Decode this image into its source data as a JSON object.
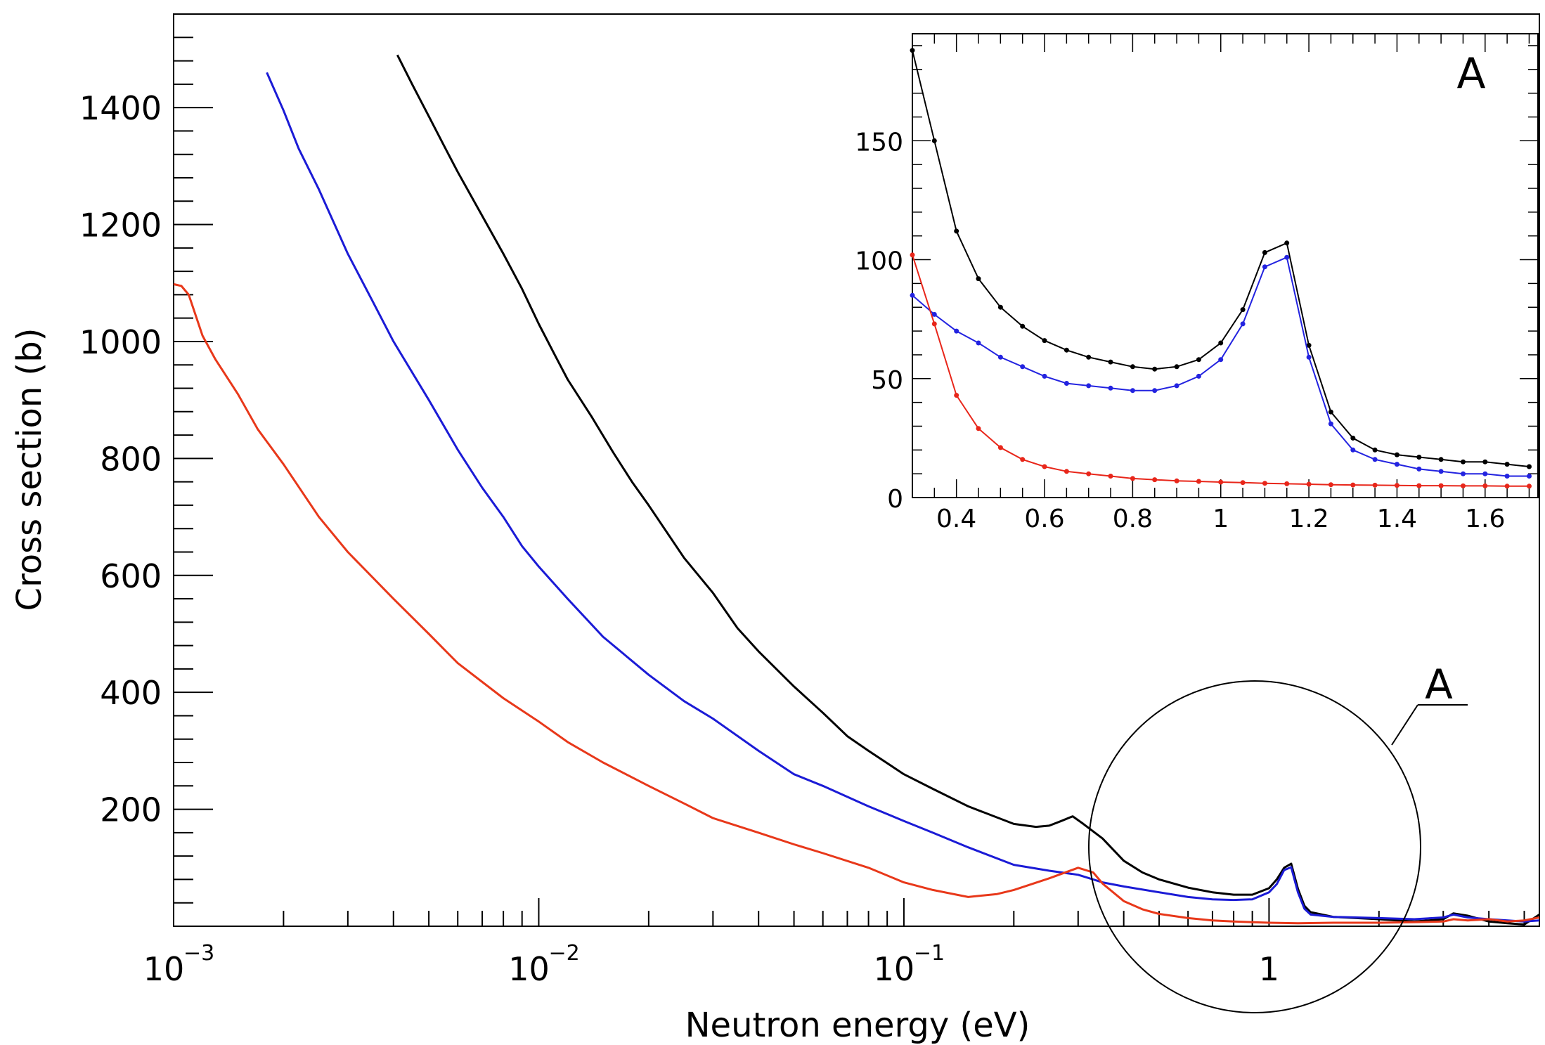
{
  "chart_data": [
    {
      "type": "line",
      "title": "",
      "xlabel": "Neutron energy (eV)",
      "ylabel": "Cross section (b)",
      "xscale": "log",
      "xlim": [
        0.001,
        5.5
      ],
      "ylim": [
        0,
        1560
      ],
      "x_tick_labels": [
        {
          "value": 0.001,
          "base": "10",
          "exp": "−3"
        },
        {
          "value": 0.01,
          "base": "10",
          "exp": "−2"
        },
        {
          "value": 0.1,
          "base": "10",
          "exp": "−1"
        },
        {
          "value": 1,
          "base": "1",
          "exp": ""
        }
      ],
      "y_ticks": [
        200,
        400,
        600,
        800,
        1000,
        1200,
        1400
      ],
      "annotation_label": "A",
      "series": [
        {
          "color": "#000000",
          "points": [
            [
              0.0041,
              1490
            ],
            [
              0.0045,
              1440
            ],
            [
              0.005,
              1385
            ],
            [
              0.0055,
              1335
            ],
            [
              0.006,
              1290
            ],
            [
              0.007,
              1215
            ],
            [
              0.008,
              1150
            ],
            [
              0.009,
              1090
            ],
            [
              0.01,
              1030
            ],
            [
              0.011,
              980
            ],
            [
              0.012,
              935
            ],
            [
              0.014,
              870
            ],
            [
              0.016,
              810
            ],
            [
              0.018,
              760
            ],
            [
              0.02,
              720
            ],
            [
              0.025,
              630
            ],
            [
              0.03,
              570
            ],
            [
              0.035,
              510
            ],
            [
              0.04,
              470
            ],
            [
              0.05,
              410
            ],
            [
              0.06,
              365
            ],
            [
              0.07,
              325
            ],
            [
              0.08,
              300
            ],
            [
              0.1,
              260
            ],
            [
              0.12,
              235
            ],
            [
              0.15,
              205
            ],
            [
              0.2,
              175
            ],
            [
              0.23,
              170
            ],
            [
              0.25,
              172
            ],
            [
              0.27,
              180
            ],
            [
              0.29,
              188
            ],
            [
              0.31,
              175
            ],
            [
              0.35,
              150
            ],
            [
              0.4,
              112
            ],
            [
              0.45,
              92
            ],
            [
              0.5,
              80
            ],
            [
              0.6,
              66
            ],
            [
              0.7,
              58
            ],
            [
              0.8,
              54
            ],
            [
              0.9,
              54
            ],
            [
              1.0,
              65
            ],
            [
              1.05,
              80
            ],
            [
              1.1,
              100
            ],
            [
              1.15,
              107
            ],
            [
              1.2,
              64
            ],
            [
              1.25,
              35
            ],
            [
              1.3,
              24
            ],
            [
              1.5,
              16
            ],
            [
              2.0,
              12
            ],
            [
              2.5,
              8
            ],
            [
              3.0,
              12
            ],
            [
              3.2,
              22
            ],
            [
              3.5,
              18
            ],
            [
              4.0,
              8
            ],
            [
              4.5,
              5
            ],
            [
              5.0,
              3
            ],
            [
              5.5,
              20
            ]
          ]
        },
        {
          "color": "#1b1bd6",
          "points": [
            [
              0.0018,
              1460
            ],
            [
              0.002,
              1395
            ],
            [
              0.0022,
              1330
            ],
            [
              0.0025,
              1260
            ],
            [
              0.003,
              1150
            ],
            [
              0.0035,
              1070
            ],
            [
              0.004,
              1000
            ],
            [
              0.005,
              900
            ],
            [
              0.006,
              815
            ],
            [
              0.007,
              750
            ],
            [
              0.008,
              700
            ],
            [
              0.009,
              650
            ],
            [
              0.01,
              615
            ],
            [
              0.012,
              560
            ],
            [
              0.015,
              495
            ],
            [
              0.02,
              430
            ],
            [
              0.025,
              385
            ],
            [
              0.03,
              355
            ],
            [
              0.04,
              300
            ],
            [
              0.05,
              260
            ],
            [
              0.06,
              240
            ],
            [
              0.08,
              205
            ],
            [
              0.1,
              180
            ],
            [
              0.12,
              160
            ],
            [
              0.15,
              135
            ],
            [
              0.2,
              105
            ],
            [
              0.25,
              95
            ],
            [
              0.3,
              88
            ],
            [
              0.35,
              75
            ],
            [
              0.4,
              68
            ],
            [
              0.5,
              58
            ],
            [
              0.6,
              50
            ],
            [
              0.7,
              46
            ],
            [
              0.8,
              45
            ],
            [
              0.9,
              46
            ],
            [
              1.0,
              58
            ],
            [
              1.05,
              72
            ],
            [
              1.1,
              96
            ],
            [
              1.15,
              101
            ],
            [
              1.2,
              58
            ],
            [
              1.25,
              30
            ],
            [
              1.3,
              20
            ],
            [
              1.5,
              16
            ],
            [
              2.0,
              14
            ],
            [
              2.5,
              12
            ],
            [
              3.0,
              15
            ],
            [
              3.2,
              20
            ],
            [
              3.5,
              15
            ],
            [
              4.0,
              12
            ],
            [
              4.5,
              10
            ],
            [
              5.0,
              8
            ],
            [
              5.5,
              10
            ]
          ]
        },
        {
          "color": "#e8381a",
          "points": [
            [
              0.001,
              1098
            ],
            [
              0.00105,
              1095
            ],
            [
              0.0011,
              1080
            ],
            [
              0.0012,
              1010
            ],
            [
              0.0013,
              970
            ],
            [
              0.0015,
              910
            ],
            [
              0.0017,
              850
            ],
            [
              0.002,
              790
            ],
            [
              0.0025,
              700
            ],
            [
              0.003,
              640
            ],
            [
              0.004,
              560
            ],
            [
              0.005,
              500
            ],
            [
              0.006,
              450
            ],
            [
              0.008,
              390
            ],
            [
              0.01,
              350
            ],
            [
              0.012,
              315
            ],
            [
              0.015,
              280
            ],
            [
              0.02,
              240
            ],
            [
              0.025,
              210
            ],
            [
              0.03,
              185
            ],
            [
              0.04,
              160
            ],
            [
              0.05,
              140
            ],
            [
              0.06,
              125
            ],
            [
              0.08,
              100
            ],
            [
              0.1,
              75
            ],
            [
              0.12,
              62
            ],
            [
              0.15,
              50
            ],
            [
              0.18,
              55
            ],
            [
              0.2,
              62
            ],
            [
              0.25,
              82
            ],
            [
              0.3,
              100
            ],
            [
              0.33,
              92
            ],
            [
              0.35,
              73
            ],
            [
              0.4,
              43
            ],
            [
              0.45,
              29
            ],
            [
              0.5,
              21
            ],
            [
              0.6,
              14
            ],
            [
              0.7,
              10
            ],
            [
              0.8,
              8
            ],
            [
              1.0,
              6
            ],
            [
              1.2,
              5
            ],
            [
              1.5,
              6
            ],
            [
              2.0,
              6
            ],
            [
              2.5,
              7
            ],
            [
              3.0,
              8
            ],
            [
              3.2,
              12
            ],
            [
              3.5,
              10
            ],
            [
              4.0,
              12
            ],
            [
              4.5,
              8
            ],
            [
              5.0,
              10
            ],
            [
              5.5,
              15
            ]
          ]
        }
      ]
    },
    {
      "type": "line",
      "title": "A",
      "xlabel": "",
      "ylabel": "",
      "xlim": [
        0.3,
        1.72
      ],
      "ylim": [
        0,
        195
      ],
      "x_ticks": [
        0.4,
        0.6,
        0.8,
        1,
        1.2,
        1.4,
        1.6
      ],
      "y_ticks": [
        0,
        50,
        100,
        150
      ],
      "series": [
        {
          "color": "#000000",
          "points": [
            [
              0.3,
              188
            ],
            [
              0.35,
              150
            ],
            [
              0.4,
              112
            ],
            [
              0.45,
              92
            ],
            [
              0.5,
              80
            ],
            [
              0.55,
              72
            ],
            [
              0.6,
              66
            ],
            [
              0.65,
              62
            ],
            [
              0.7,
              59
            ],
            [
              0.75,
              57
            ],
            [
              0.8,
              55
            ],
            [
              0.85,
              54
            ],
            [
              0.9,
              55
            ],
            [
              0.95,
              58
            ],
            [
              1.0,
              65
            ],
            [
              1.05,
              79
            ],
            [
              1.1,
              103
            ],
            [
              1.15,
              107
            ],
            [
              1.2,
              64
            ],
            [
              1.25,
              36
            ],
            [
              1.3,
              25
            ],
            [
              1.35,
              20
            ],
            [
              1.4,
              18
            ],
            [
              1.45,
              17
            ],
            [
              1.5,
              16
            ],
            [
              1.55,
              15
            ],
            [
              1.6,
              15
            ],
            [
              1.65,
              14
            ],
            [
              1.7,
              13
            ]
          ]
        },
        {
          "color": "#2323e0",
          "points": [
            [
              0.3,
              85
            ],
            [
              0.35,
              77
            ],
            [
              0.4,
              70
            ],
            [
              0.45,
              65
            ],
            [
              0.5,
              59
            ],
            [
              0.55,
              55
            ],
            [
              0.6,
              51
            ],
            [
              0.65,
              48
            ],
            [
              0.7,
              47
            ],
            [
              0.75,
              46
            ],
            [
              0.8,
              45
            ],
            [
              0.85,
              45
            ],
            [
              0.9,
              47
            ],
            [
              0.95,
              51
            ],
            [
              1.0,
              58
            ],
            [
              1.05,
              73
            ],
            [
              1.1,
              97
            ],
            [
              1.15,
              101
            ],
            [
              1.2,
              59
            ],
            [
              1.25,
              31
            ],
            [
              1.3,
              20
            ],
            [
              1.35,
              16
            ],
            [
              1.4,
              14
            ],
            [
              1.45,
              12
            ],
            [
              1.5,
              11
            ],
            [
              1.55,
              10
            ],
            [
              1.6,
              10
            ],
            [
              1.65,
              9
            ],
            [
              1.7,
              9
            ]
          ]
        },
        {
          "color": "#e8261a",
          "points": [
            [
              0.3,
              102
            ],
            [
              0.35,
              73
            ],
            [
              0.4,
              43
            ],
            [
              0.45,
              29
            ],
            [
              0.5,
              21
            ],
            [
              0.55,
              16
            ],
            [
              0.6,
              13
            ],
            [
              0.65,
              11
            ],
            [
              0.7,
              10
            ],
            [
              0.75,
              9
            ],
            [
              0.8,
              8
            ],
            [
              0.85,
              7.5
            ],
            [
              0.9,
              7
            ],
            [
              0.95,
              6.8
            ],
            [
              1.0,
              6.5
            ],
            [
              1.05,
              6.3
            ],
            [
              1.1,
              6
            ],
            [
              1.15,
              5.8
            ],
            [
              1.2,
              5.6
            ],
            [
              1.25,
              5.4
            ],
            [
              1.3,
              5.3
            ],
            [
              1.35,
              5.2
            ],
            [
              1.4,
              5.1
            ],
            [
              1.45,
              5
            ],
            [
              1.5,
              5
            ],
            [
              1.55,
              4.9
            ],
            [
              1.6,
              4.9
            ],
            [
              1.65,
              4.8
            ],
            [
              1.7,
              4.8
            ]
          ]
        }
      ]
    }
  ]
}
